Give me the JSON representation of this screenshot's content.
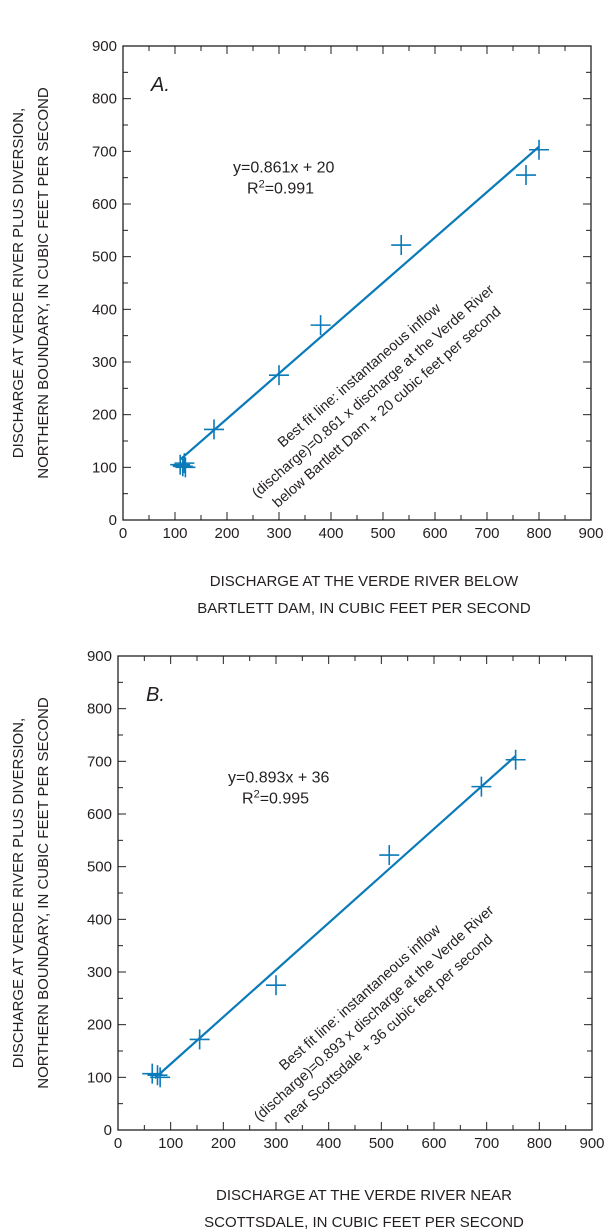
{
  "colors": {
    "data": "#0a7ab8",
    "ink": "#231f20"
  },
  "chart_data": [
    {
      "type": "scatter",
      "panel": "A.",
      "xlabel": [
        "DISCHARGE AT THE VERDE  RIVER BELOW",
        "BARTLETT DAM, IN CUBIC FEET PER SECOND"
      ],
      "ylabel": [
        "DISCHARGE AT VERDE  RIVER PLUS DIVERSION,",
        "NORTHERN BOUNDARY, IN CUBIC FEET PER SECOND"
      ],
      "xlim": [
        0,
        900
      ],
      "ylim": [
        0,
        900
      ],
      "xticks": [
        "0",
        "100",
        "200",
        "300",
        "400",
        "500",
        "600",
        "700",
        "800",
        "900"
      ],
      "yticks": [
        "0",
        "100",
        "200",
        "300",
        "400",
        "500",
        "600",
        "700",
        "800",
        "900"
      ],
      "grid": false,
      "equation": "y=0.861x + 20",
      "r2_prefix": "R",
      "r2_sup": "2",
      "r2_value": "=0.991",
      "fit_line": {
        "slope": 0.861,
        "intercept": 20,
        "x_range": [
          110,
          800
        ]
      },
      "fit_note": [
        "Best fit line: instantaneous inflow",
        "(discharge)=0.861 x discharge at the Verde River",
        "below Bartlett Dam + 20 cubic feet per second"
      ],
      "points": [
        {
          "x": 110,
          "y": 105
        },
        {
          "x": 115,
          "y": 102
        },
        {
          "x": 118,
          "y": 108
        },
        {
          "x": 120,
          "y": 100
        },
        {
          "x": 175,
          "y": 172
        },
        {
          "x": 300,
          "y": 275
        },
        {
          "x": 380,
          "y": 370
        },
        {
          "x": 535,
          "y": 522
        },
        {
          "x": 775,
          "y": 655
        },
        {
          "x": 800,
          "y": 703
        }
      ]
    },
    {
      "type": "scatter",
      "panel": "B.",
      "xlabel": [
        "DISCHARGE AT THE VERDE  RIVER NEAR",
        "SCOTTSDALE, IN CUBIC FEET PER SECOND"
      ],
      "ylabel": [
        "DISCHARGE AT VERDE  RIVER PLUS DIVERSION,",
        "NORTHERN BOUNDARY, IN CUBIC FEET PER SECOND"
      ],
      "xlim": [
        0,
        900
      ],
      "ylim": [
        0,
        900
      ],
      "xticks": [
        "0",
        "100",
        "200",
        "300",
        "400",
        "500",
        "600",
        "700",
        "800",
        "900"
      ],
      "yticks": [
        "0",
        "100",
        "200",
        "300",
        "400",
        "500",
        "600",
        "700",
        "800",
        "900"
      ],
      "grid": false,
      "equation": "y=0.893x + 36",
      "r2_prefix": "R",
      "r2_sup": "2",
      "r2_value": "=0.995",
      "fit_line": {
        "slope": 0.893,
        "intercept": 36,
        "x_range": [
          70,
          755
        ]
      },
      "fit_note": [
        "Best fit line: instantaneous inflow",
        "(discharge)=0.893 x discharge at the Verde River",
        "near Scottsdale + 36 cubic feet per second"
      ],
      "points": [
        {
          "x": 65,
          "y": 107
        },
        {
          "x": 75,
          "y": 104
        },
        {
          "x": 80,
          "y": 100
        },
        {
          "x": 155,
          "y": 172
        },
        {
          "x": 300,
          "y": 275
        },
        {
          "x": 515,
          "y": 522
        },
        {
          "x": 690,
          "y": 652
        },
        {
          "x": 755,
          "y": 703
        }
      ]
    }
  ]
}
